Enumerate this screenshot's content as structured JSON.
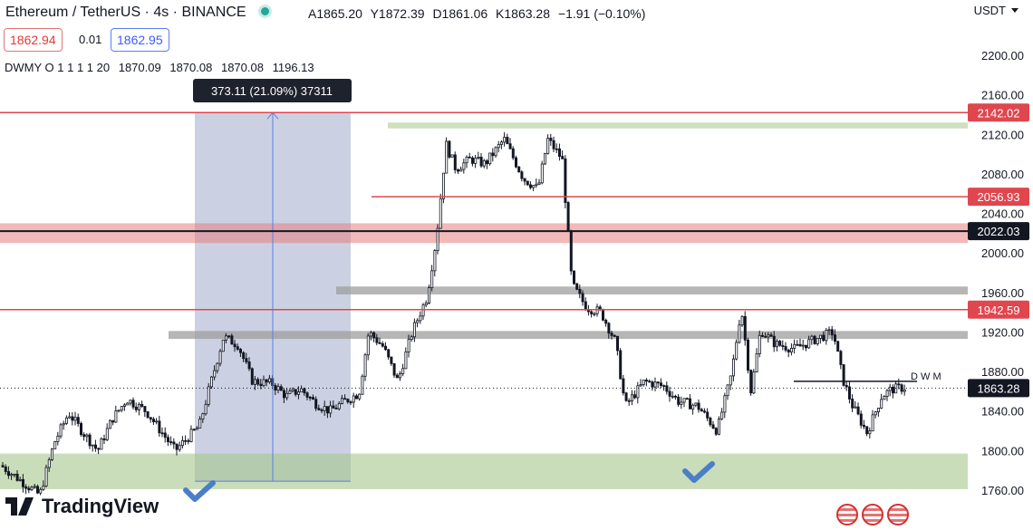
{
  "header": {
    "symbol": "Ethereum / TetherUS · 4s · BINANCE",
    "ohlc": [
      "A1865.20",
      "Y1872.39",
      "D1861.06",
      "K1863.28",
      "−1.91 (−0.10%)"
    ]
  },
  "trade": {
    "sell_price": "1862.94",
    "spread": "0.01",
    "buy_price": "1862.95"
  },
  "indicator": {
    "name": "DWMY O 1 1 1 1 20",
    "values": [
      "1870.09",
      "1870.08",
      "1870.08",
      "1196.13"
    ]
  },
  "currency": "USDT",
  "branding": "TradingView",
  "dm_label": "D W  M",
  "colors": {
    "up": "#131722",
    "down": "#131722",
    "red_line": "#e0464e",
    "gray_zone": "#9e9e9e",
    "green_zone": "#a5c68c",
    "red_zone": "#e8807f",
    "measure_box": "#a9b3cf",
    "measure_line": "#5b7de8",
    "tooltip_bg": "#1e222d",
    "check": "#4a7fc7"
  },
  "chart_data": {
    "type": "candlestick",
    "symbol": "ETH/USDT",
    "timeframe": "4s",
    "y_axis": {
      "ticks": [
        2200,
        2160,
        2120,
        2080,
        2040,
        2000,
        1960,
        1920,
        1880,
        1840,
        1800,
        1760
      ],
      "ylim": [
        1730,
        2240
      ]
    },
    "current_price": 1863.28,
    "price_path": [
      [
        0.0,
        1785
      ],
      [
        0.02,
        1770
      ],
      [
        0.04,
        1755
      ],
      [
        0.055,
        1808
      ],
      [
        0.07,
        1838
      ],
      [
        0.085,
        1818
      ],
      [
        0.1,
        1800
      ],
      [
        0.115,
        1832
      ],
      [
        0.13,
        1852
      ],
      [
        0.15,
        1840
      ],
      [
        0.165,
        1820
      ],
      [
        0.18,
        1800
      ],
      [
        0.195,
        1815
      ],
      [
        0.205,
        1825
      ],
      [
        0.215,
        1862
      ],
      [
        0.23,
        1915
      ],
      [
        0.245,
        1907
      ],
      [
        0.26,
        1870
      ],
      [
        0.28,
        1868
      ],
      [
        0.295,
        1855
      ],
      [
        0.31,
        1862
      ],
      [
        0.325,
        1848
      ],
      [
        0.34,
        1840
      ],
      [
        0.355,
        1850
      ],
      [
        0.37,
        1858
      ],
      [
        0.38,
        1920
      ],
      [
        0.395,
        1905
      ],
      [
        0.41,
        1870
      ],
      [
        0.425,
        1920
      ],
      [
        0.44,
        1955
      ],
      [
        0.45,
        2015
      ],
      [
        0.46,
        2110
      ],
      [
        0.47,
        2085
      ],
      [
        0.485,
        2095
      ],
      [
        0.5,
        2090
      ],
      [
        0.52,
        2115
      ],
      [
        0.54,
        2075
      ],
      [
        0.555,
        2065
      ],
      [
        0.565,
        2115
      ],
      [
        0.58,
        2095
      ],
      [
        0.59,
        1968
      ],
      [
        0.605,
        1945
      ],
      [
        0.62,
        1940
      ],
      [
        0.635,
        1910
      ],
      [
        0.645,
        1845
      ],
      [
        0.665,
        1870
      ],
      [
        0.685,
        1865
      ],
      [
        0.7,
        1850
      ],
      [
        0.72,
        1845
      ],
      [
        0.74,
        1820
      ],
      [
        0.755,
        1878
      ],
      [
        0.765,
        1945
      ],
      [
        0.775,
        1860
      ],
      [
        0.785,
        1922
      ],
      [
        0.8,
        1908
      ],
      [
        0.82,
        1903
      ],
      [
        0.84,
        1912
      ],
      [
        0.86,
        1920
      ],
      [
        0.87,
        1872
      ],
      [
        0.88,
        1845
      ],
      [
        0.895,
        1818
      ],
      [
        0.91,
        1855
      ],
      [
        0.92,
        1862
      ],
      [
        0.935,
        1864
      ]
    ],
    "levels": [
      {
        "price": 2142.02,
        "kind": "line",
        "color": "red",
        "label": "2142.02",
        "span": "full"
      },
      {
        "price": 2056.93,
        "kind": "line",
        "color": "red",
        "label": "2056.93",
        "span": "right"
      },
      {
        "price": 2022.03,
        "kind": "line",
        "color": "black",
        "label": "2022.03",
        "span": "full"
      },
      {
        "price": 1942.59,
        "kind": "line",
        "color": "red",
        "label": "1942.59",
        "span": "full"
      },
      {
        "price": 1863.28,
        "kind": "dotted",
        "label": "1863.28"
      },
      {
        "price": 1870.09,
        "kind": "short-line"
      }
    ],
    "zones": [
      {
        "from": 2010,
        "to": 2030,
        "color": "red"
      },
      {
        "from": 2126,
        "to": 2132,
        "color": "green"
      },
      {
        "from": 1958,
        "to": 1966,
        "color": "gray"
      },
      {
        "from": 1913,
        "to": 1921,
        "color": "gray"
      },
      {
        "from": 1761,
        "to": 1797,
        "color": "green"
      }
    ],
    "measure": {
      "from": 1769,
      "to": 2142,
      "label": "373.11 (21.09%) 37311"
    }
  }
}
